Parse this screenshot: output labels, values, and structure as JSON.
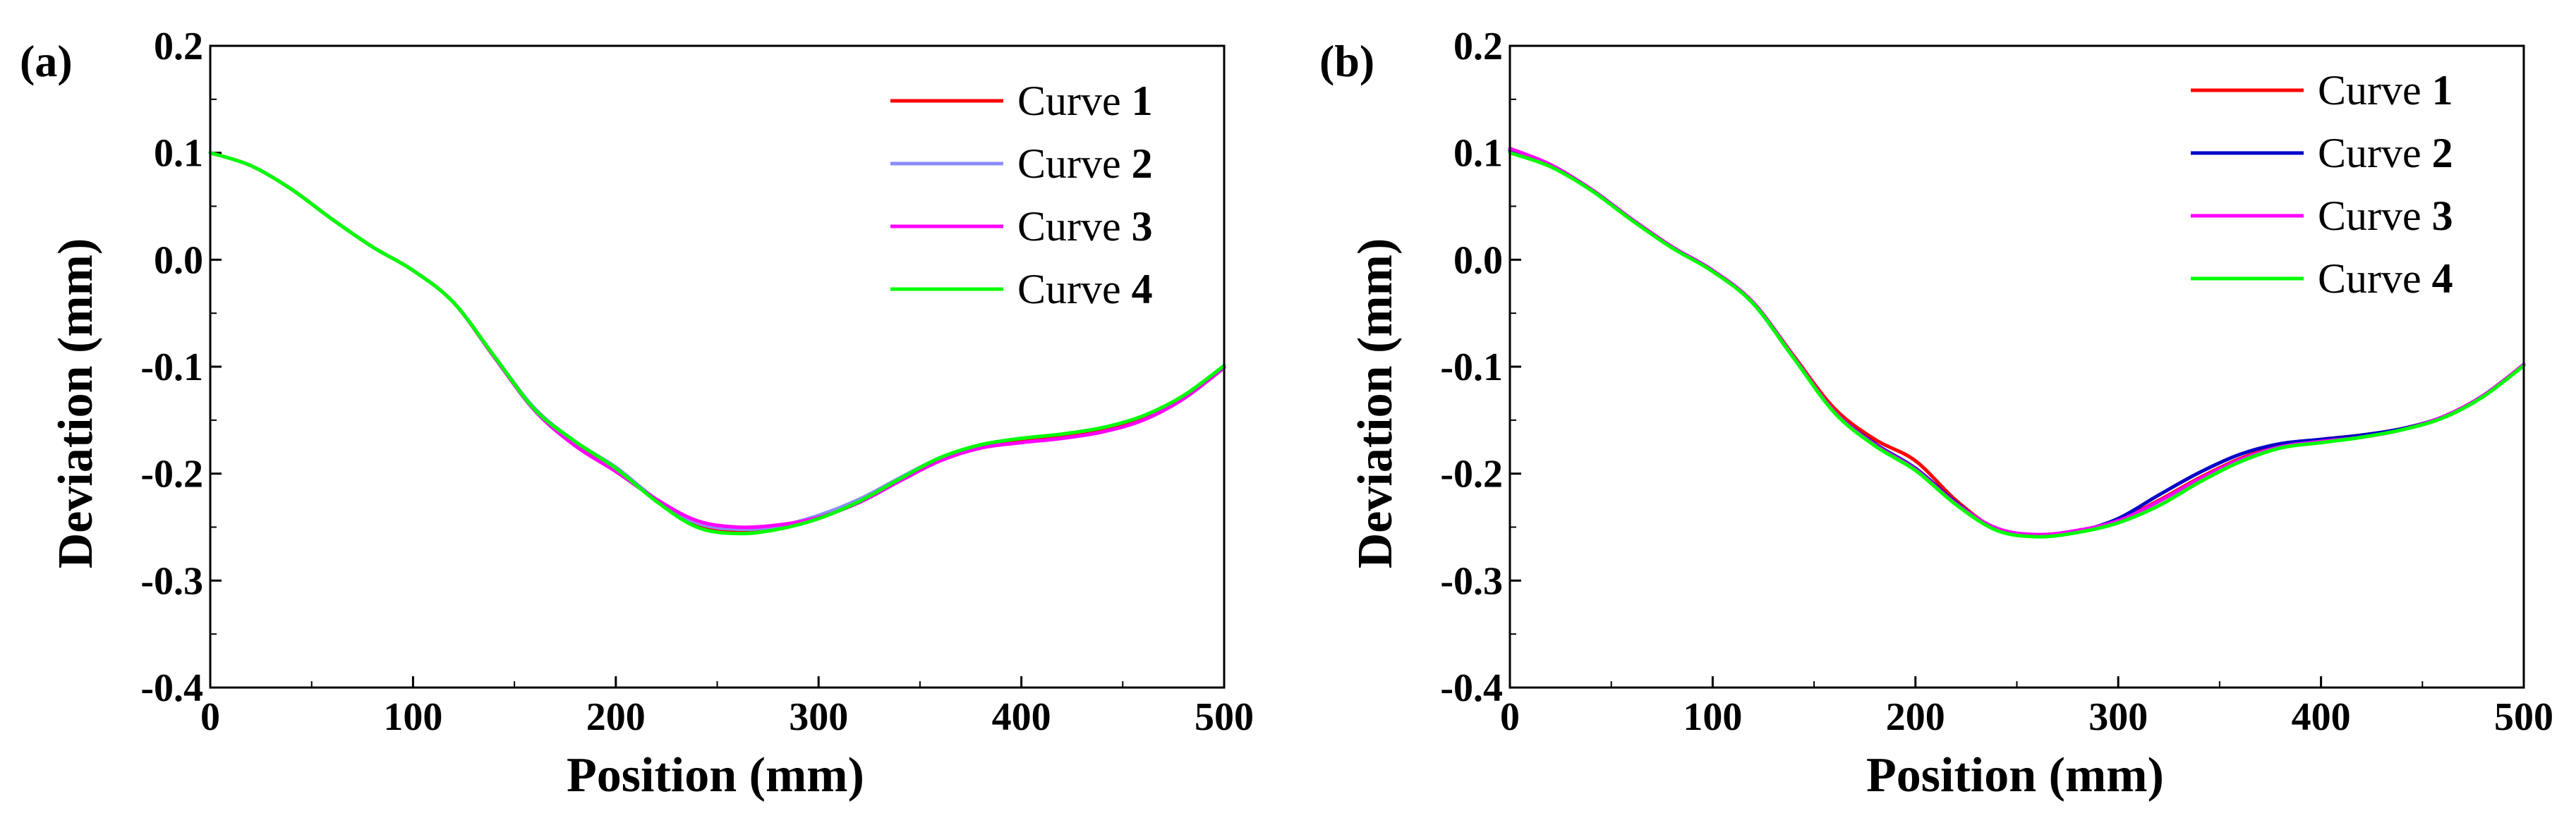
{
  "chart_data": [
    {
      "panel_label": "(a)",
      "type": "line",
      "xlabel": "Position (mm)",
      "ylabel": "Deviation  (mm)",
      "xlim": [
        0,
        500
      ],
      "ylim": [
        -0.4,
        0.2
      ],
      "xticks": [
        0,
        100,
        200,
        300,
        400,
        500
      ],
      "yticks": [
        0.2,
        0.1,
        0.0,
        -0.1,
        -0.2,
        -0.3,
        -0.4
      ],
      "xtick_labels": [
        "0",
        "100",
        "200",
        "300",
        "400",
        "500"
      ],
      "ytick_labels": [
        "0.2",
        "0.1",
        "0.0",
        "-0.1",
        "-0.2",
        "-0.3",
        "-0.4"
      ],
      "legend_position": "top-right",
      "series": [
        {
          "name": "Curve",
          "index": "1",
          "color": "#ff0000",
          "x": [
            0,
            20,
            40,
            60,
            80,
            100,
            120,
            140,
            160,
            180,
            200,
            220,
            240,
            260,
            280,
            300,
            320,
            340,
            360,
            380,
            400,
            420,
            440,
            460,
            480,
            500
          ],
          "y": [
            0.1,
            0.088,
            0.066,
            0.038,
            0.012,
            -0.01,
            -0.04,
            -0.09,
            -0.14,
            -0.172,
            -0.196,
            -0.225,
            -0.248,
            -0.254,
            -0.25,
            -0.24,
            -0.225,
            -0.205,
            -0.186,
            -0.174,
            -0.168,
            -0.164,
            -0.158,
            -0.147,
            -0.128,
            -0.1
          ]
        },
        {
          "name": "Curve",
          "index": "2",
          "color": "#8c8cff",
          "x": [
            0,
            20,
            40,
            60,
            80,
            100,
            120,
            140,
            160,
            180,
            200,
            220,
            240,
            260,
            280,
            300,
            320,
            340,
            360,
            380,
            400,
            420,
            440,
            460,
            480,
            500
          ],
          "y": [
            0.1,
            0.088,
            0.066,
            0.038,
            0.012,
            -0.01,
            -0.04,
            -0.09,
            -0.139,
            -0.17,
            -0.194,
            -0.224,
            -0.246,
            -0.252,
            -0.249,
            -0.239,
            -0.224,
            -0.204,
            -0.185,
            -0.173,
            -0.167,
            -0.163,
            -0.157,
            -0.146,
            -0.127,
            -0.099
          ]
        },
        {
          "name": "Curve",
          "index": "3",
          "color": "#ff00ff",
          "x": [
            0,
            20,
            40,
            60,
            80,
            100,
            120,
            140,
            160,
            180,
            200,
            220,
            240,
            260,
            280,
            300,
            320,
            340,
            360,
            380,
            400,
            420,
            440,
            460,
            480,
            500
          ],
          "y": [
            0.1,
            0.088,
            0.066,
            0.038,
            0.012,
            -0.01,
            -0.04,
            -0.091,
            -0.141,
            -0.174,
            -0.198,
            -0.224,
            -0.244,
            -0.25,
            -0.248,
            -0.241,
            -0.227,
            -0.207,
            -0.188,
            -0.176,
            -0.171,
            -0.167,
            -0.161,
            -0.15,
            -0.13,
            -0.101
          ]
        },
        {
          "name": "Curve",
          "index": "4",
          "color": "#00ff00",
          "x": [
            0,
            20,
            40,
            60,
            80,
            100,
            120,
            140,
            160,
            180,
            200,
            220,
            240,
            260,
            280,
            300,
            320,
            340,
            360,
            380,
            400,
            420,
            440,
            460,
            480,
            500
          ],
          "y": [
            0.1,
            0.088,
            0.066,
            0.038,
            0.012,
            -0.01,
            -0.04,
            -0.09,
            -0.14,
            -0.17,
            -0.195,
            -0.226,
            -0.25,
            -0.256,
            -0.252,
            -0.242,
            -0.226,
            -0.205,
            -0.185,
            -0.173,
            -0.167,
            -0.163,
            -0.157,
            -0.146,
            -0.127,
            -0.099
          ]
        }
      ]
    },
    {
      "panel_label": "(b)",
      "type": "line",
      "xlabel": "Position (mm)",
      "ylabel": "Deviation  (mm)",
      "xlim": [
        0,
        500
      ],
      "ylim": [
        -0.4,
        0.2
      ],
      "xticks": [
        0,
        100,
        200,
        300,
        400,
        500
      ],
      "yticks": [
        0.2,
        0.1,
        0.0,
        -0.1,
        -0.2,
        -0.3,
        -0.4
      ],
      "xtick_labels": [
        "0",
        "100",
        "200",
        "300",
        "400",
        "500"
      ],
      "ytick_labels": [
        "0.2",
        "0.1",
        "0.0",
        "-0.1",
        "-0.2",
        "-0.3",
        "-0.4"
      ],
      "legend_position": "top-right",
      "series": [
        {
          "name": "Curve",
          "index": "1",
          "color": "#ff0000",
          "x": [
            0,
            20,
            40,
            60,
            80,
            100,
            120,
            140,
            160,
            180,
            200,
            220,
            240,
            260,
            280,
            300,
            320,
            340,
            360,
            380,
            400,
            420,
            440,
            460,
            480,
            500
          ],
          "y": [
            0.1,
            0.088,
            0.066,
            0.038,
            0.012,
            -0.01,
            -0.04,
            -0.09,
            -0.139,
            -0.168,
            -0.188,
            -0.225,
            -0.252,
            -0.258,
            -0.254,
            -0.244,
            -0.225,
            -0.204,
            -0.186,
            -0.174,
            -0.168,
            -0.164,
            -0.158,
            -0.147,
            -0.127,
            -0.098
          ]
        },
        {
          "name": "Curve",
          "index": "2",
          "color": "#0000c8",
          "x": [
            0,
            20,
            40,
            60,
            80,
            100,
            120,
            140,
            160,
            180,
            200,
            220,
            240,
            260,
            280,
            300,
            320,
            340,
            360,
            380,
            400,
            420,
            440,
            460,
            480,
            500
          ],
          "y": [
            0.102,
            0.088,
            0.066,
            0.038,
            0.012,
            -0.01,
            -0.041,
            -0.092,
            -0.142,
            -0.172,
            -0.195,
            -0.227,
            -0.252,
            -0.258,
            -0.254,
            -0.242,
            -0.22,
            -0.199,
            -0.182,
            -0.172,
            -0.168,
            -0.164,
            -0.158,
            -0.147,
            -0.127,
            -0.098
          ]
        },
        {
          "name": "Curve",
          "index": "3",
          "color": "#ff00ff",
          "x": [
            0,
            20,
            40,
            60,
            80,
            100,
            120,
            140,
            160,
            180,
            200,
            220,
            240,
            260,
            280,
            300,
            320,
            340,
            360,
            380,
            400,
            420,
            440,
            460,
            480,
            500
          ],
          "y": [
            0.104,
            0.089,
            0.066,
            0.038,
            0.012,
            -0.01,
            -0.04,
            -0.091,
            -0.142,
            -0.173,
            -0.196,
            -0.228,
            -0.251,
            -0.257,
            -0.253,
            -0.244,
            -0.226,
            -0.205,
            -0.187,
            -0.175,
            -0.17,
            -0.166,
            -0.159,
            -0.147,
            -0.127,
            -0.098
          ]
        },
        {
          "name": "Curve",
          "index": "4",
          "color": "#00ff00",
          "x": [
            0,
            20,
            40,
            60,
            80,
            100,
            120,
            140,
            160,
            180,
            200,
            220,
            240,
            260,
            280,
            300,
            320,
            340,
            360,
            380,
            400,
            420,
            440,
            460,
            480,
            500
          ],
          "y": [
            0.1,
            0.087,
            0.065,
            0.037,
            0.011,
            -0.011,
            -0.041,
            -0.092,
            -0.143,
            -0.174,
            -0.197,
            -0.229,
            -0.253,
            -0.259,
            -0.255,
            -0.246,
            -0.23,
            -0.208,
            -0.189,
            -0.176,
            -0.171,
            -0.166,
            -0.159,
            -0.148,
            -0.128,
            -0.099
          ]
        }
      ]
    }
  ]
}
